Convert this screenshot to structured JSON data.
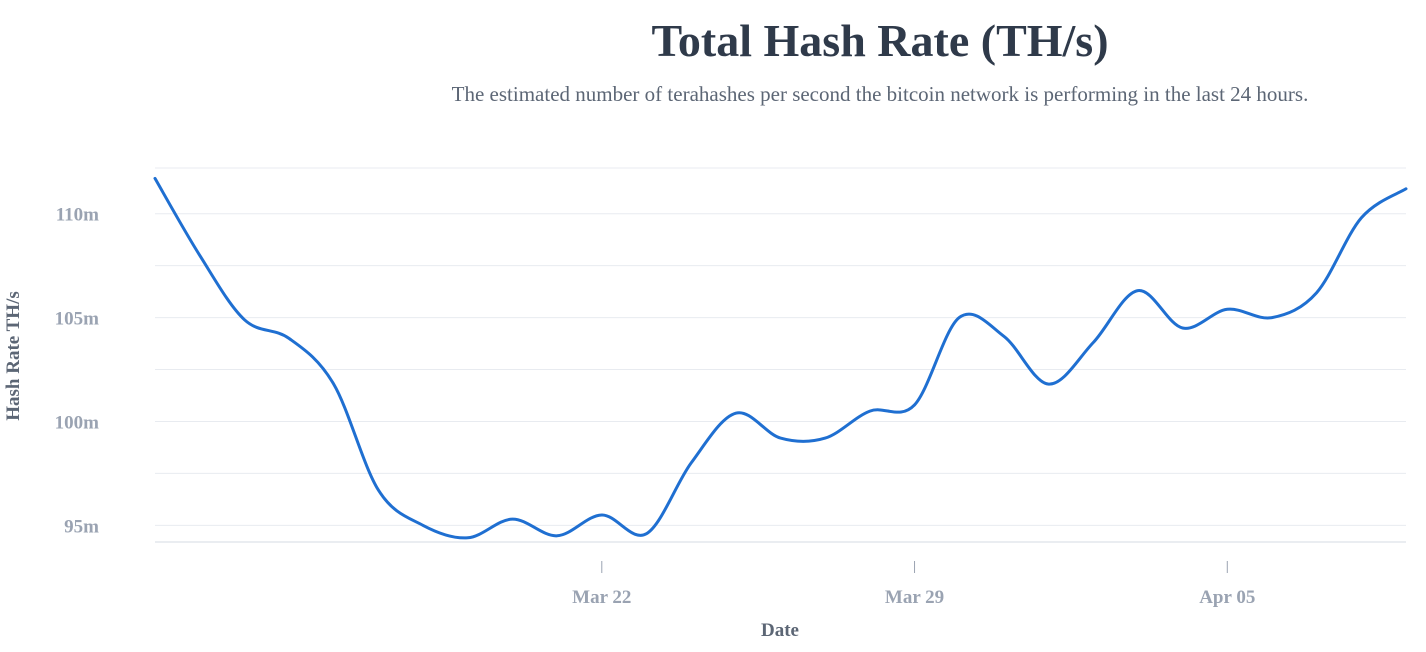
{
  "header": {
    "title": "Total Hash Rate (TH/s)",
    "subtitle": "The estimated number of terahashes per second the bitcoin network is performing in the last 24 hours."
  },
  "colors": {
    "line": "#1f6fd1",
    "grid": "#e8ebf0",
    "tick_label": "#9aa3b2",
    "axis_title": "#5c6675",
    "title": "#2f3a4a"
  },
  "chart_data": {
    "type": "line",
    "title": "Total Hash Rate (TH/s)",
    "subtitle": "The estimated number of terahashes per second the bitcoin network is performing in the last 24 hours.",
    "xlabel": "Date",
    "ylabel": "Hash Rate TH/s",
    "x_ticks": [
      {
        "date": "2020-03-22",
        "label": "Mar 22"
      },
      {
        "date": "2020-03-29",
        "label": "Mar 29"
      },
      {
        "date": "2020-04-05",
        "label": "Apr 05"
      }
    ],
    "y_ticks": [
      {
        "value": 95000000,
        "label": "95m"
      },
      {
        "value": 100000000,
        "label": "100m"
      },
      {
        "value": 105000000,
        "label": "105m"
      },
      {
        "value": 110000000,
        "label": "110m"
      }
    ],
    "xlim": [
      "2020-03-12",
      "2020-04-09"
    ],
    "ylim": [
      94200000,
      112200000
    ],
    "grid": true,
    "legend": "none",
    "series": [
      {
        "values": [
          {
            "x": "2020-03-12",
            "y": 111700000
          },
          {
            "x": "2020-03-13",
            "y": 108000000
          },
          {
            "x": "2020-03-14",
            "y": 104900000
          },
          {
            "x": "2020-03-15",
            "y": 104000000
          },
          {
            "x": "2020-03-16",
            "y": 101800000
          },
          {
            "x": "2020-03-17",
            "y": 96700000
          },
          {
            "x": "2020-03-18",
            "y": 95000000
          },
          {
            "x": "2020-03-19",
            "y": 94400000
          },
          {
            "x": "2020-03-20",
            "y": 95300000
          },
          {
            "x": "2020-03-21",
            "y": 94500000
          },
          {
            "x": "2020-03-22",
            "y": 95500000
          },
          {
            "x": "2020-03-23",
            "y": 94600000
          },
          {
            "x": "2020-03-24",
            "y": 98000000
          },
          {
            "x": "2020-03-25",
            "y": 100400000
          },
          {
            "x": "2020-03-26",
            "y": 99200000
          },
          {
            "x": "2020-03-27",
            "y": 99200000
          },
          {
            "x": "2020-03-28",
            "y": 100500000
          },
          {
            "x": "2020-03-29",
            "y": 100800000
          },
          {
            "x": "2020-03-30",
            "y": 105000000
          },
          {
            "x": "2020-03-31",
            "y": 104100000
          },
          {
            "x": "2020-04-01",
            "y": 101800000
          },
          {
            "x": "2020-04-02",
            "y": 103800000
          },
          {
            "x": "2020-04-03",
            "y": 106300000
          },
          {
            "x": "2020-04-04",
            "y": 104500000
          },
          {
            "x": "2020-04-05",
            "y": 105400000
          },
          {
            "x": "2020-04-06",
            "y": 105000000
          },
          {
            "x": "2020-04-07",
            "y": 106200000
          },
          {
            "x": "2020-04-08",
            "y": 109800000
          },
          {
            "x": "2020-04-09",
            "y": 111200000
          }
        ]
      }
    ]
  }
}
